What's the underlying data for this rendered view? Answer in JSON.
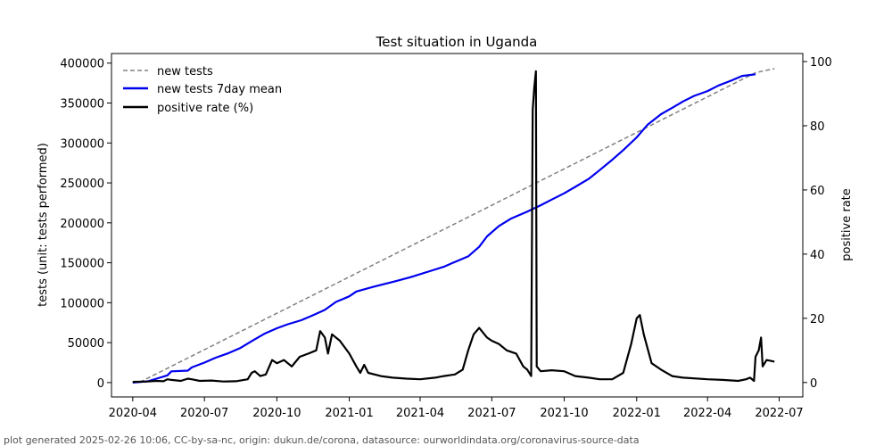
{
  "chart_data": {
    "type": "line",
    "title": "Test situation in Uganda",
    "ylabel_left": "tests (unit: tests performed)",
    "ylabel_right": "positive rate",
    "ylim_left": [
      -18000,
      412000
    ],
    "ylim_right": [
      -4.5,
      102.5
    ],
    "xlim": [
      "2020-03-05",
      "2022-07-31"
    ],
    "x_ticks": [
      "2020-04",
      "2020-07",
      "2020-10",
      "2021-01",
      "2021-04",
      "2021-07",
      "2021-10",
      "2022-01",
      "2022-04",
      "2022-07"
    ],
    "y_ticks_left": [
      0,
      50000,
      100000,
      150000,
      200000,
      250000,
      300000,
      350000,
      400000
    ],
    "y_ticks_left_labels": [
      "0",
      "50000",
      "100000",
      "150000",
      "200000",
      "250000",
      "300000",
      "350000",
      "400000"
    ],
    "y_ticks_right": [
      0,
      20,
      40,
      60,
      80,
      100
    ],
    "y_ticks_right_labels": [
      "0",
      "20",
      "40",
      "60",
      "80",
      "100"
    ],
    "legend": [
      "new tests",
      "new tests 7day mean",
      "positive rate (%)"
    ],
    "series": [
      {
        "name": "new tests",
        "style": "dashed",
        "color": "#808080",
        "axis": "left",
        "points": [
          [
            "2020-04-01",
            0
          ],
          [
            "2020-04-10",
            500
          ],
          [
            "2022-06-01",
            388000
          ],
          [
            "2022-06-10",
            390000
          ],
          [
            "2022-06-25",
            393000
          ]
        ]
      },
      {
        "name": "new tests 7day mean",
        "style": "solid",
        "color": "#0000ee",
        "axis": "left",
        "points": [
          [
            "2020-04-01",
            0
          ],
          [
            "2020-04-20",
            1500
          ],
          [
            "2020-05-05",
            6000
          ],
          [
            "2020-05-15",
            9000
          ],
          [
            "2020-05-20",
            14000
          ],
          [
            "2020-06-10",
            15000
          ],
          [
            "2020-06-15",
            19000
          ],
          [
            "2020-07-01",
            25000
          ],
          [
            "2020-07-15",
            31000
          ],
          [
            "2020-08-01",
            37000
          ],
          [
            "2020-08-15",
            43000
          ],
          [
            "2020-09-01",
            53000
          ],
          [
            "2020-09-15",
            61000
          ],
          [
            "2020-10-01",
            68000
          ],
          [
            "2020-10-15",
            73000
          ],
          [
            "2020-11-01",
            78000
          ],
          [
            "2020-11-15",
            84000
          ],
          [
            "2020-12-01",
            91000
          ],
          [
            "2020-12-15",
            101000
          ],
          [
            "2021-01-01",
            108000
          ],
          [
            "2021-01-10",
            114000
          ],
          [
            "2021-02-01",
            120000
          ],
          [
            "2021-03-01",
            127000
          ],
          [
            "2021-03-20",
            132000
          ],
          [
            "2021-04-15",
            140000
          ],
          [
            "2021-05-01",
            145000
          ],
          [
            "2021-05-15",
            151000
          ],
          [
            "2021-06-01",
            158000
          ],
          [
            "2021-06-15",
            170000
          ],
          [
            "2021-06-25",
            183000
          ],
          [
            "2021-07-10",
            196000
          ],
          [
            "2021-07-25",
            205000
          ],
          [
            "2021-08-15",
            214000
          ],
          [
            "2021-09-01",
            222000
          ],
          [
            "2021-09-15",
            229000
          ],
          [
            "2021-10-01",
            237000
          ],
          [
            "2021-10-15",
            245000
          ],
          [
            "2021-11-01",
            255000
          ],
          [
            "2021-11-15",
            266000
          ],
          [
            "2021-12-01",
            279000
          ],
          [
            "2021-12-15",
            291000
          ],
          [
            "2022-01-01",
            307000
          ],
          [
            "2022-01-15",
            323000
          ],
          [
            "2022-02-01",
            336000
          ],
          [
            "2022-02-15",
            344000
          ],
          [
            "2022-03-01",
            352000
          ],
          [
            "2022-03-15",
            359000
          ],
          [
            "2022-04-01",
            365000
          ],
          [
            "2022-04-15",
            372000
          ],
          [
            "2022-05-01",
            378000
          ],
          [
            "2022-05-15",
            384000
          ],
          [
            "2022-06-01",
            386000
          ]
        ]
      },
      {
        "name": "positive rate (%)",
        "style": "solid",
        "color": "#000000",
        "axis": "right",
        "points": [
          [
            "2020-04-01",
            0.2
          ],
          [
            "2020-04-20",
            0.3
          ],
          [
            "2020-05-01",
            0.5
          ],
          [
            "2020-05-10",
            0.4
          ],
          [
            "2020-05-15",
            1
          ],
          [
            "2020-05-20",
            0.8
          ],
          [
            "2020-06-01",
            0.5
          ],
          [
            "2020-06-10",
            1.2
          ],
          [
            "2020-06-15",
            1.0
          ],
          [
            "2020-06-25",
            0.5
          ],
          [
            "2020-07-10",
            0.6
          ],
          [
            "2020-07-25",
            0.3
          ],
          [
            "2020-08-10",
            0.4
          ],
          [
            "2020-08-25",
            1
          ],
          [
            "2020-08-30",
            3
          ],
          [
            "2020-09-03",
            3.5
          ],
          [
            "2020-09-10",
            2
          ],
          [
            "2020-09-17",
            2.5
          ],
          [
            "2020-09-25",
            7
          ],
          [
            "2020-10-01",
            6
          ],
          [
            "2020-10-10",
            7
          ],
          [
            "2020-10-20",
            5
          ],
          [
            "2020-10-30",
            8
          ],
          [
            "2020-11-10",
            9
          ],
          [
            "2020-11-20",
            10
          ],
          [
            "2020-11-25",
            16
          ],
          [
            "2020-12-01",
            14
          ],
          [
            "2020-12-05",
            9
          ],
          [
            "2020-12-10",
            15
          ],
          [
            "2020-12-20",
            13
          ],
          [
            "2021-01-01",
            9
          ],
          [
            "2021-01-10",
            5
          ],
          [
            "2021-01-15",
            3
          ],
          [
            "2021-01-20",
            5.5
          ],
          [
            "2021-01-25",
            3
          ],
          [
            "2021-02-10",
            2
          ],
          [
            "2021-02-25",
            1.5
          ],
          [
            "2021-03-15",
            1.2
          ],
          [
            "2021-04-01",
            1
          ],
          [
            "2021-04-20",
            1.5
          ],
          [
            "2021-05-01",
            2
          ],
          [
            "2021-05-15",
            2.5
          ],
          [
            "2021-05-25",
            4
          ],
          [
            "2021-06-01",
            10
          ],
          [
            "2021-06-08",
            15
          ],
          [
            "2021-06-15",
            17
          ],
          [
            "2021-06-25",
            14
          ],
          [
            "2021-07-01",
            13
          ],
          [
            "2021-07-10",
            12
          ],
          [
            "2021-07-20",
            10
          ],
          [
            "2021-08-01",
            9
          ],
          [
            "2021-08-10",
            5
          ],
          [
            "2021-08-15",
            4
          ],
          [
            "2021-08-20",
            2
          ],
          [
            "2021-08-22",
            85
          ],
          [
            "2021-08-24",
            92
          ],
          [
            "2021-08-26",
            97
          ],
          [
            "2021-08-27",
            5
          ],
          [
            "2021-09-01",
            3.5
          ],
          [
            "2021-09-15",
            3.8
          ],
          [
            "2021-10-01",
            3.5
          ],
          [
            "2021-10-15",
            2
          ],
          [
            "2021-11-01",
            1.5
          ],
          [
            "2021-11-15",
            1
          ],
          [
            "2021-12-01",
            1
          ],
          [
            "2021-12-15",
            3
          ],
          [
            "2021-12-25",
            12
          ],
          [
            "2022-01-01",
            20
          ],
          [
            "2022-01-05",
            21
          ],
          [
            "2022-01-10",
            15
          ],
          [
            "2022-01-20",
            6
          ],
          [
            "2022-02-01",
            4
          ],
          [
            "2022-02-15",
            2
          ],
          [
            "2022-03-01",
            1.5
          ],
          [
            "2022-04-01",
            1
          ],
          [
            "2022-04-20",
            0.8
          ],
          [
            "2022-05-10",
            0.5
          ],
          [
            "2022-05-20",
            1
          ],
          [
            "2022-05-25",
            1.5
          ],
          [
            "2022-05-30",
            0.5
          ],
          [
            "2022-06-01",
            8
          ],
          [
            "2022-06-05",
            10
          ],
          [
            "2022-06-08",
            14
          ],
          [
            "2022-06-10",
            5
          ],
          [
            "2022-06-15",
            7
          ],
          [
            "2022-06-25",
            6.5
          ]
        ]
      }
    ]
  },
  "footer": "plot generated 2025-02-26 10:06, CC-by-sa-nc, origin: dukun.de/corona, datasource: ourworldindata.org/coronavirus-source-data"
}
